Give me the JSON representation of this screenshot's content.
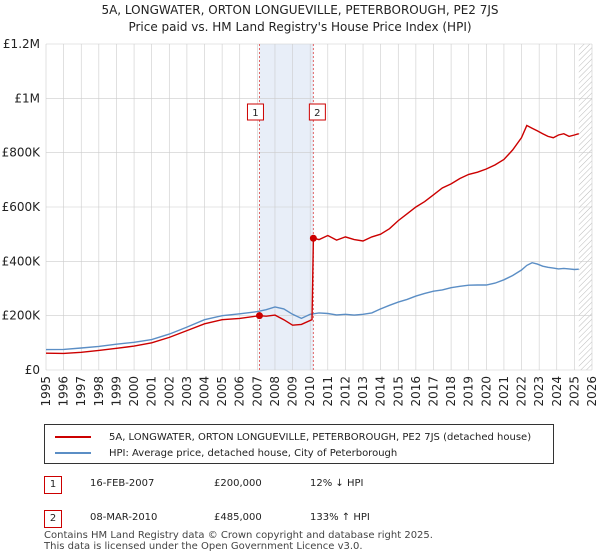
{
  "title_line1": "5A, LONGWATER, ORTON LONGUEVILLE, PETERBOROUGH, PE2 7JS",
  "title_line2": "Price paid vs. HM Land Registry's House Price Index (HPI)",
  "colors": {
    "property": "#cc0000",
    "hpi": "#5b8ec5",
    "shade": "#e8eef8",
    "marker_line": "#e06666",
    "grid": "#cccccc"
  },
  "chart_data": {
    "type": "line",
    "title": "Price paid vs. HM Land Registry's House Price Index (HPI)",
    "xlabel": "",
    "ylabel": "",
    "xlim": [
      1995,
      2026
    ],
    "ylim": [
      0,
      1200000
    ],
    "x_ticks": [
      "1995",
      "1996",
      "1997",
      "1998",
      "1999",
      "2000",
      "2001",
      "2002",
      "2003",
      "2004",
      "2005",
      "2006",
      "2007",
      "2008",
      "2009",
      "2010",
      "2011",
      "2012",
      "2013",
      "2014",
      "2015",
      "2016",
      "2017",
      "2018",
      "2019",
      "2020",
      "2021",
      "2022",
      "2023",
      "2024",
      "2025",
      "2026"
    ],
    "y_ticks": [
      {
        "value": 0,
        "label": "£0"
      },
      {
        "value": 200000,
        "label": "£200K"
      },
      {
        "value": 400000,
        "label": "£400K"
      },
      {
        "value": 600000,
        "label": "£600K"
      },
      {
        "value": 800000,
        "label": "£800K"
      },
      {
        "value": 1000000,
        "label": "£1M"
      },
      {
        "value": 1200000,
        "label": "£1.2M"
      }
    ],
    "grid": true,
    "shaded_range": [
      2007.12,
      2010.18
    ],
    "future_hatch_from": 2025.25,
    "series": [
      {
        "name": "5A, LONGWATER, ORTON LONGUEVILLE, PETERBOROUGH, PE2 7JS (detached house)",
        "color": "#cc0000",
        "x": [
          1995,
          1996,
          1997,
          1998,
          1999,
          2000,
          2001,
          2002,
          2003,
          2004,
          2005,
          2006,
          2007.12,
          2007.5,
          2008,
          2008.5,
          2009,
          2009.5,
          2010.1,
          2010.18,
          2010.5,
          2011,
          2011.5,
          2012,
          2012.5,
          2013,
          2013.5,
          2014,
          2014.5,
          2015,
          2015.5,
          2016,
          2016.5,
          2017,
          2017.5,
          2018,
          2018.5,
          2019,
          2019.5,
          2020,
          2020.5,
          2021,
          2021.5,
          2022,
          2022.3,
          2022.6,
          2022.9,
          2023.2,
          2023.5,
          2023.8,
          2024.1,
          2024.4,
          2024.7,
          2025,
          2025.25
        ],
        "values": [
          62000,
          61000,
          65000,
          72000,
          80000,
          88000,
          100000,
          120000,
          145000,
          170000,
          185000,
          190000,
          200000,
          198000,
          202000,
          185000,
          165000,
          168000,
          185000,
          485000,
          480000,
          495000,
          478000,
          490000,
          480000,
          475000,
          490000,
          500000,
          520000,
          550000,
          575000,
          600000,
          620000,
          645000,
          670000,
          685000,
          705000,
          720000,
          728000,
          740000,
          755000,
          775000,
          810000,
          855000,
          900000,
          890000,
          880000,
          870000,
          860000,
          855000,
          865000,
          870000,
          860000,
          865000,
          870000
        ]
      },
      {
        "name": "HPI: Average price, detached house, City of Peterborough",
        "color": "#5b8ec5",
        "x": [
          1995,
          1996,
          1997,
          1998,
          1999,
          2000,
          2001,
          2002,
          2003,
          2004,
          2005,
          2006,
          2007,
          2007.5,
          2008,
          2008.5,
          2009,
          2009.5,
          2010,
          2010.5,
          2011,
          2011.5,
          2012,
          2012.5,
          2013,
          2013.5,
          2014,
          2014.5,
          2015,
          2015.5,
          2016,
          2016.5,
          2017,
          2017.5,
          2018,
          2018.5,
          2019,
          2019.5,
          2020,
          2020.5,
          2021,
          2021.5,
          2022,
          2022.3,
          2022.6,
          2022.9,
          2023.2,
          2023.5,
          2023.8,
          2024.1,
          2024.4,
          2024.7,
          2025,
          2025.25
        ],
        "values": [
          75000,
          76000,
          81000,
          87000,
          95000,
          102000,
          112000,
          132000,
          158000,
          185000,
          200000,
          207000,
          215000,
          222000,
          232000,
          225000,
          205000,
          190000,
          205000,
          210000,
          208000,
          203000,
          205000,
          202000,
          205000,
          210000,
          225000,
          238000,
          250000,
          260000,
          272000,
          282000,
          290000,
          295000,
          303000,
          308000,
          312000,
          313000,
          313000,
          320000,
          332000,
          348000,
          368000,
          385000,
          395000,
          390000,
          382000,
          378000,
          375000,
          372000,
          374000,
          372000,
          370000,
          371000
        ]
      }
    ],
    "sales": [
      {
        "id": "1",
        "x": 2007.12,
        "value": 200000
      },
      {
        "id": "2",
        "x": 2010.18,
        "value": 485000
      }
    ]
  },
  "legend": {
    "property_label": "5A, LONGWATER, ORTON LONGUEVILLE, PETERBOROUGH, PE2 7JS (detached house)",
    "hpi_label": "HPI: Average price, detached house, City of Peterborough"
  },
  "sales_table": [
    {
      "id": "1",
      "date": "16-FEB-2007",
      "price": "£200,000",
      "hpi": "12% ↓ HPI"
    },
    {
      "id": "2",
      "date": "08-MAR-2010",
      "price": "£485,000",
      "hpi": "133% ↑ HPI"
    }
  ],
  "footer": {
    "line1": "Contains HM Land Registry data © Crown copyright and database right 2025.",
    "line2": "This data is licensed under the Open Government Licence v3.0."
  }
}
